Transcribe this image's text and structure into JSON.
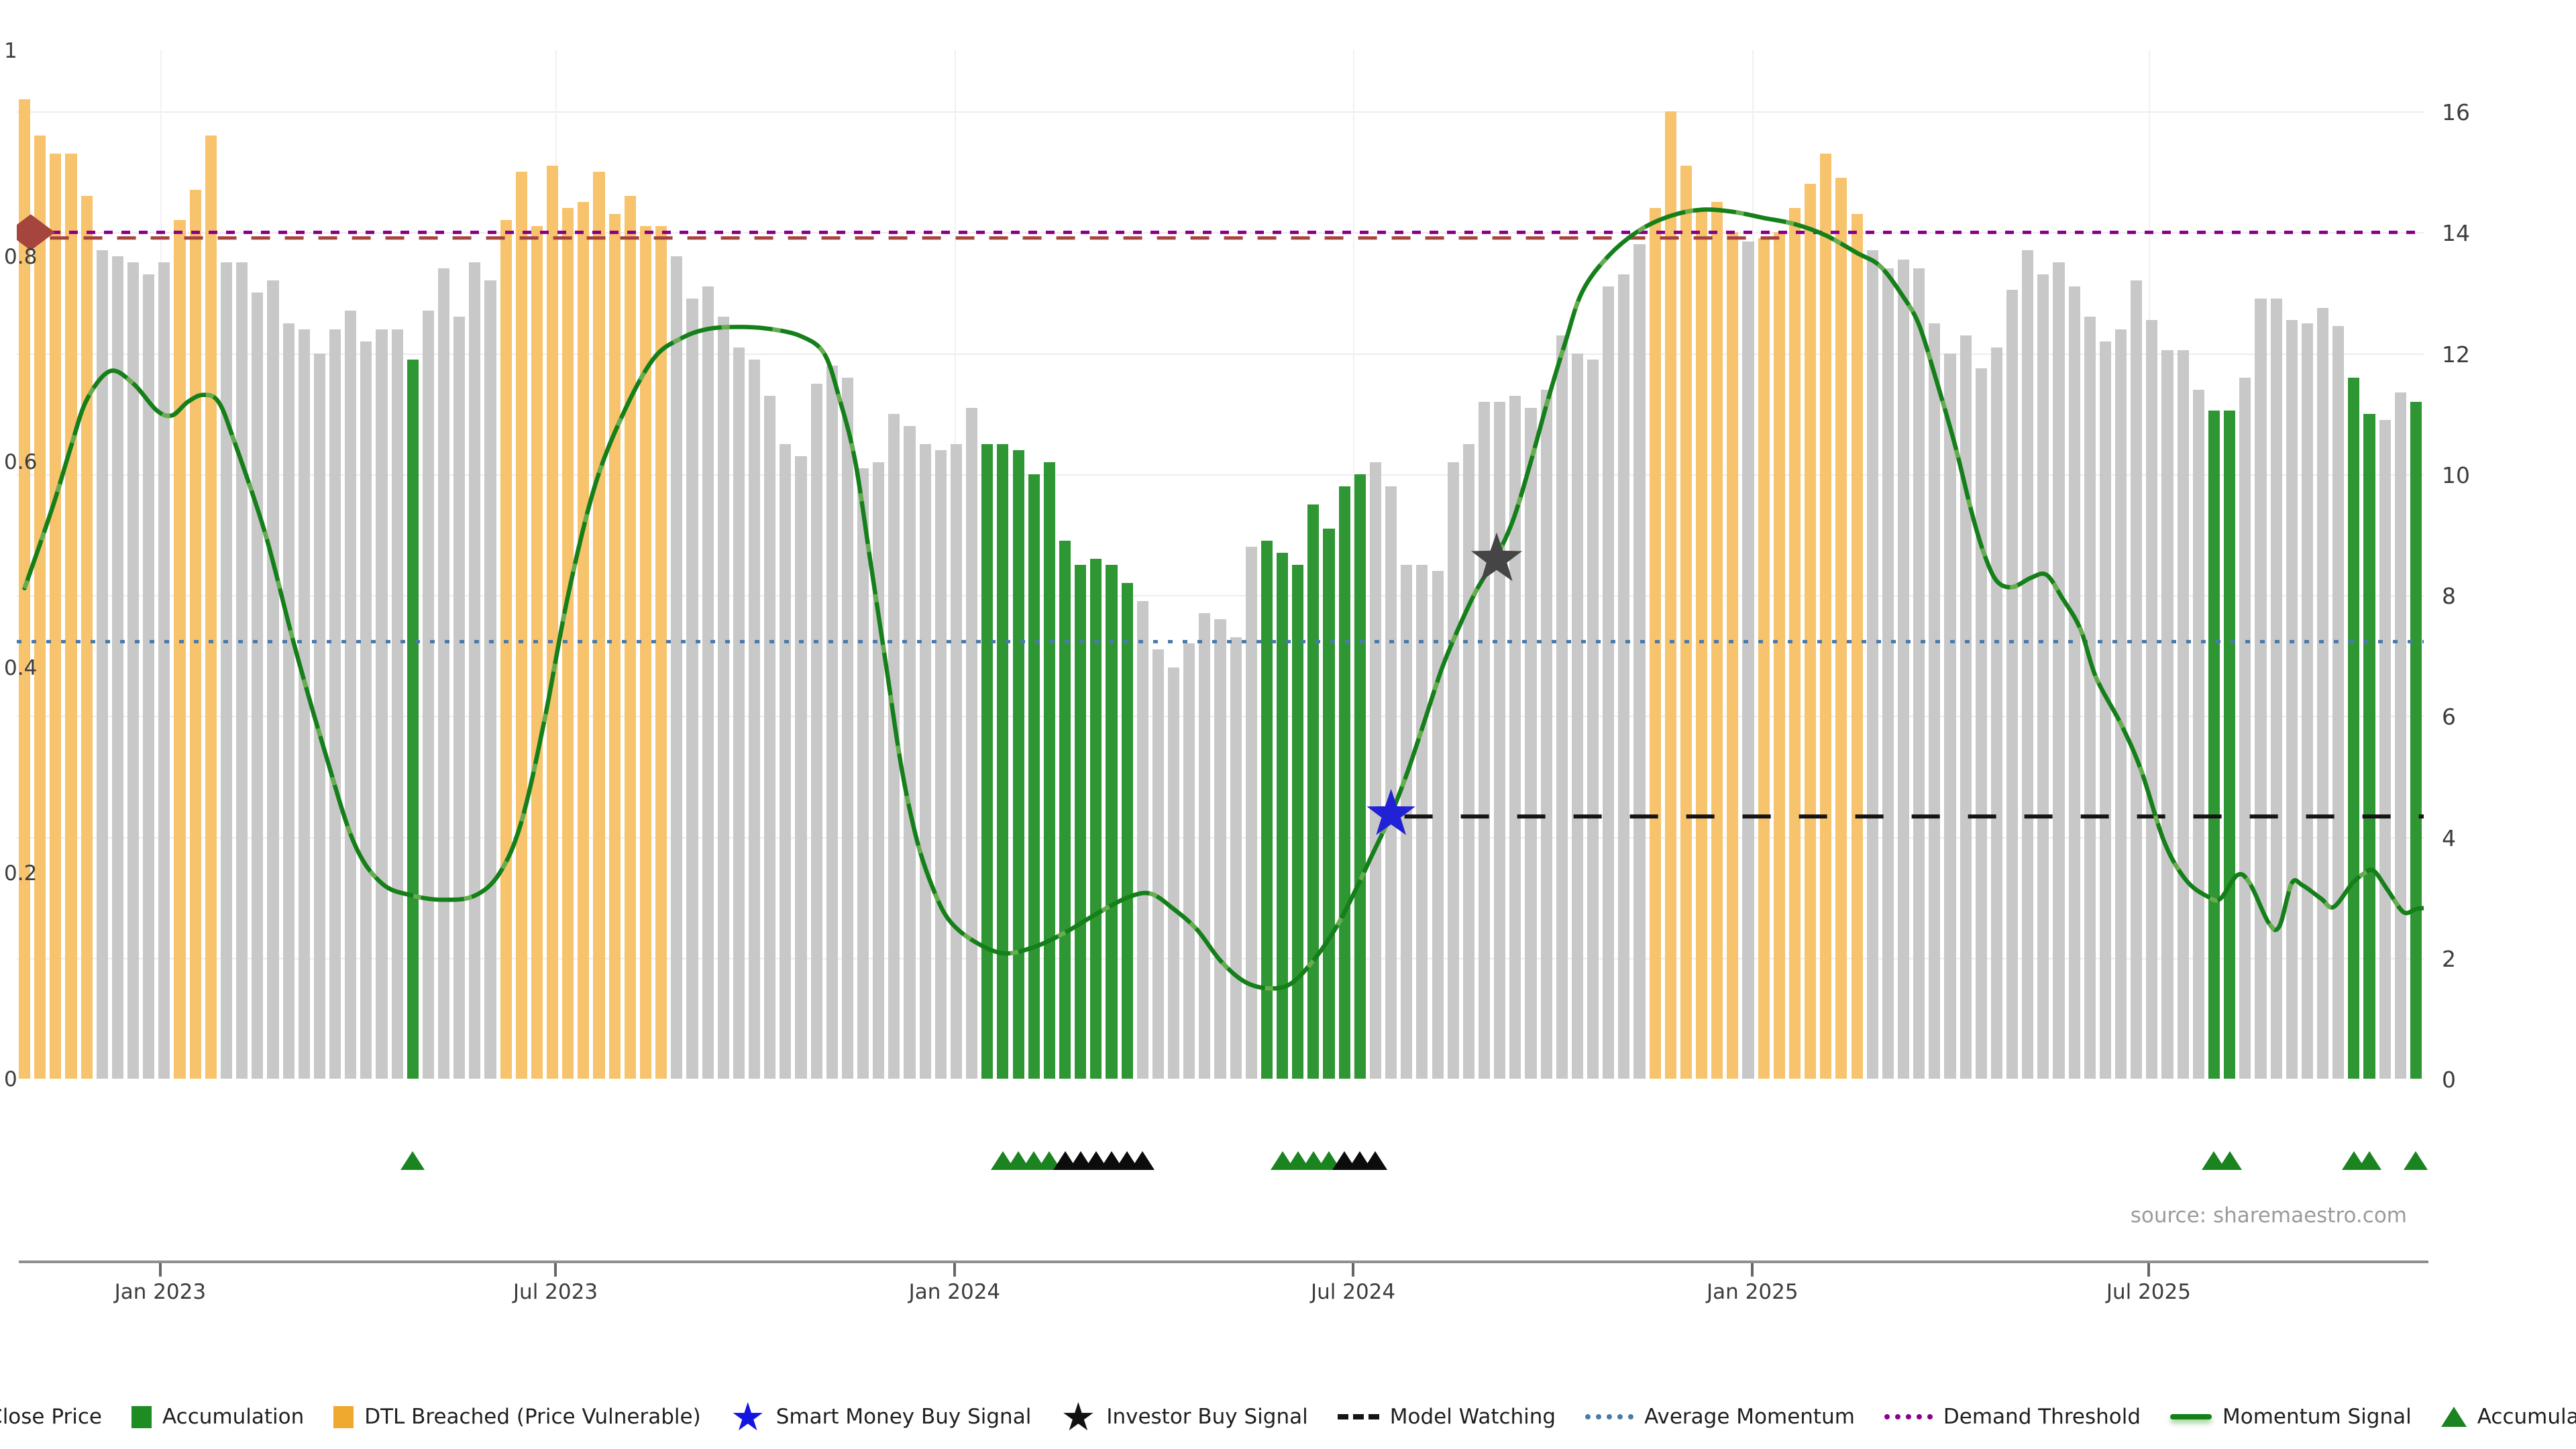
{
  "source": "source: sharemaestro.com",
  "colors": {
    "close_price_bar": "#c8c8c8",
    "accumulation_bar": "#2f9634",
    "dtl_breached_bar": "#f7c36c",
    "momentum_line": "#157f1a",
    "momentum_line_fleck": "#70b356",
    "demand_threshold": "#8b008b",
    "dtl_level_line": "#a6453e",
    "average_momentum": "#4a7aab",
    "model_watching": "#141414",
    "smart_money_star": "#2121d6",
    "investor_star": "#454545",
    "triangle_green": "#1b8420",
    "triangle_black": "#0c0c0c",
    "axis_text": "#3c3c3c",
    "source_text": "#9b9b9b"
  },
  "chart_data": {
    "type": "bar",
    "title": "",
    "xlabel": "",
    "ylabel_left": "",
    "ylabel_right": "",
    "grid": true,
    "legend_position": "bottom",
    "x_ticks": {
      "labels": [
        "Jan 2023",
        "Jul 2023",
        "Jan 2024",
        "Jul 2024",
        "Jan 2025",
        "Jul 2025"
      ],
      "fractions": [
        0.0596,
        0.2238,
        0.3896,
        0.5552,
        0.7211,
        0.8857
      ]
    },
    "left_axis": {
      "ticks": [
        "0",
        "0.2",
        "0.4",
        "0.6",
        "0.8",
        "1"
      ],
      "values": [
        0,
        0.2,
        0.4,
        0.6,
        0.8,
        1
      ],
      "range": [
        0,
        1
      ]
    },
    "right_axis": {
      "ticks": [
        "0",
        "2",
        "4",
        "6",
        "8",
        "10",
        "12",
        "14",
        "16"
      ],
      "values": [
        0,
        2,
        4,
        6,
        8,
        10,
        12,
        14,
        16
      ],
      "range": [
        0,
        16
      ],
      "top_fraction_of_left_axis": 0.9406
    },
    "bars": {
      "kind_key": {
        "g": "close-price",
        "o": "dtl-breached",
        "a": "accumulation"
      },
      "kinds": "oooooggggggooogggggggggggaggggg? placeholder",
      "values": [
        16.2,
        15.6,
        15.3,
        15.3,
        14.6,
        13.7,
        13.6,
        13.5,
        13.3,
        13.5,
        14.2,
        14.7,
        15.6,
        13.5,
        13.5,
        13.0,
        13.2,
        12.5,
        12.4,
        12.0,
        12.4,
        12.7,
        12.2,
        12.4,
        12.4,
        11.9,
        12.7,
        13.4,
        12.6,
        13.5,
        13.2,
        14.2,
        15.0,
        14.1,
        15.1,
        14.4,
        14.5,
        15.0,
        14.3,
        14.6,
        14.1,
        14.1,
        13.6,
        12.9,
        13.1,
        12.6,
        12.1,
        11.9,
        11.3,
        10.5,
        10.3,
        11.5,
        11.8,
        11.6,
        10.1,
        10.2,
        11.0,
        10.8,
        10.5,
        10.4,
        10.5,
        11.1,
        10.5,
        10.5,
        10.4,
        10.0,
        10.2,
        8.9,
        8.5,
        8.6,
        8.5,
        8.2,
        7.9,
        7.1,
        6.8,
        7.2,
        7.7,
        7.6,
        7.3,
        8.8,
        8.9,
        8.7,
        8.5,
        9.5,
        9.1,
        9.8,
        10.0,
        10.2,
        9.8,
        8.5,
        8.5,
        8.4,
        10.2,
        10.5,
        11.2,
        11.2,
        11.3,
        11.1,
        11.4,
        12.3,
        12.0,
        11.9,
        13.1,
        13.3,
        13.8,
        14.4,
        16.0,
        15.1,
        14.4,
        14.5,
        14.0,
        13.85,
        13.9,
        14.0,
        14.4,
        14.8,
        15.3,
        14.9,
        14.3,
        13.7,
        13.4,
        13.55,
        13.4,
        12.5,
        12.0,
        12.3,
        11.75,
        12.1,
        13.05,
        13.7,
        13.3,
        13.5,
        13.1,
        12.6,
        12.2,
        12.4,
        13.2,
        12.55,
        12.05,
        12.05,
        11.4,
        11.05,
        11.05,
        11.6,
        12.9,
        12.9,
        12.55,
        12.5,
        12.75,
        12.45,
        11.6,
        11.0,
        10.9,
        11.35,
        11.2
      ],
      "segments": [
        {
          "from": 0,
          "to": 4,
          "kind": "o"
        },
        {
          "from": 5,
          "to": 9,
          "kind": "g"
        },
        {
          "from": 10,
          "to": 12,
          "kind": "o"
        },
        {
          "from": 13,
          "to": 24,
          "kind": "g"
        },
        {
          "from": 25,
          "to": 25,
          "kind": "a"
        },
        {
          "from": 26,
          "to": 30,
          "kind": "g"
        },
        {
          "from": 31,
          "to": 41,
          "kind": "o"
        },
        {
          "from": 42,
          "to": 61,
          "kind": "g"
        },
        {
          "from": 62,
          "to": 71,
          "kind": "a"
        },
        {
          "from": 72,
          "to": 79,
          "kind": "g"
        },
        {
          "from": 80,
          "to": 86,
          "kind": "a"
        },
        {
          "from": 87,
          "to": 104,
          "kind": "g"
        },
        {
          "from": 105,
          "to": 110,
          "kind": "o"
        },
        {
          "from": 111,
          "to": 111,
          "kind": "g"
        },
        {
          "from": 112,
          "to": 118,
          "kind": "o"
        },
        {
          "from": 119,
          "to": 140,
          "kind": "g"
        },
        {
          "from": 141,
          "to": 142,
          "kind": "a"
        },
        {
          "from": 143,
          "to": 149,
          "kind": "g"
        },
        {
          "from": 150,
          "to": 151,
          "kind": "a"
        },
        {
          "from": 152,
          "to": 153,
          "kind": "g"
        },
        {
          "from": 154,
          "to": 154,
          "kind": "a"
        }
      ]
    },
    "momentum_signal": [
      [
        0,
        0.477
      ],
      [
        1,
        0.52
      ],
      [
        2,
        0.565
      ],
      [
        3,
        0.615
      ],
      [
        4,
        0.66
      ],
      [
        5.5,
        0.688
      ],
      [
        7,
        0.676
      ],
      [
        8.5,
        0.65
      ],
      [
        9.5,
        0.645
      ],
      [
        10.5,
        0.658
      ],
      [
        11.5,
        0.665
      ],
      [
        12.5,
        0.658
      ],
      [
        13.5,
        0.62
      ],
      [
        15.5,
        0.53
      ],
      [
        17.4,
        0.42
      ],
      [
        19.3,
        0.32
      ],
      [
        21.2,
        0.23
      ],
      [
        23,
        0.19
      ],
      [
        25,
        0.178
      ],
      [
        27,
        0.174
      ],
      [
        29,
        0.178
      ],
      [
        30.6,
        0.2
      ],
      [
        32,
        0.25
      ],
      [
        33.5,
        0.35
      ],
      [
        35,
        0.47
      ],
      [
        36.7,
        0.575
      ],
      [
        38.5,
        0.645
      ],
      [
        40.5,
        0.7
      ],
      [
        42.3,
        0.72
      ],
      [
        44,
        0.729
      ],
      [
        46,
        0.731
      ],
      [
        48,
        0.729
      ],
      [
        50,
        0.722
      ],
      [
        51.5,
        0.705
      ],
      [
        52.5,
        0.66
      ],
      [
        53.5,
        0.6
      ],
      [
        54.5,
        0.5
      ],
      [
        55.5,
        0.4
      ],
      [
        56.5,
        0.3
      ],
      [
        57.5,
        0.23
      ],
      [
        58.5,
        0.185
      ],
      [
        59.5,
        0.155
      ],
      [
        61,
        0.135
      ],
      [
        63,
        0.122
      ],
      [
        65,
        0.128
      ],
      [
        67,
        0.142
      ],
      [
        69,
        0.16
      ],
      [
        71,
        0.176
      ],
      [
        72.5,
        0.18
      ],
      [
        74,
        0.165
      ],
      [
        75.5,
        0.145
      ],
      [
        77,
        0.115
      ],
      [
        78.5,
        0.095
      ],
      [
        80,
        0.088
      ],
      [
        81.5,
        0.092
      ],
      [
        83,
        0.115
      ],
      [
        84.5,
        0.148
      ],
      [
        85.6,
        0.18
      ],
      [
        86.7,
        0.215
      ],
      [
        88,
        0.257
      ],
      [
        89.1,
        0.3
      ],
      [
        90.2,
        0.35
      ],
      [
        91.3,
        0.4
      ],
      [
        92.4,
        0.44
      ],
      [
        93.5,
        0.475
      ],
      [
        94.8,
        0.508
      ],
      [
        95.9,
        0.545
      ],
      [
        97,
        0.6
      ],
      [
        98.1,
        0.66
      ],
      [
        99.2,
        0.715
      ],
      [
        100.3,
        0.765
      ],
      [
        102,
        0.8
      ],
      [
        104,
        0.825
      ],
      [
        106,
        0.839
      ],
      [
        108,
        0.845
      ],
      [
        110,
        0.843
      ],
      [
        112,
        0.837
      ],
      [
        114,
        0.831
      ],
      [
        116,
        0.82
      ],
      [
        118,
        0.803
      ],
      [
        119.5,
        0.79
      ],
      [
        121,
        0.76
      ],
      [
        122,
        0.733
      ],
      [
        123,
        0.685
      ],
      [
        124.3,
        0.617
      ],
      [
        125.4,
        0.55
      ],
      [
        126.2,
        0.51
      ],
      [
        127,
        0.484
      ],
      [
        128,
        0.478
      ],
      [
        129.2,
        0.487
      ],
      [
        130.2,
        0.49
      ],
      [
        131.2,
        0.468
      ],
      [
        132.4,
        0.437
      ],
      [
        133.4,
        0.39
      ],
      [
        135,
        0.345
      ],
      [
        136.3,
        0.3
      ],
      [
        137.8,
        0.23
      ],
      [
        139.2,
        0.193
      ],
      [
        140.6,
        0.177
      ],
      [
        141.4,
        0.175
      ],
      [
        142.5,
        0.198
      ],
      [
        143.3,
        0.19
      ],
      [
        144.5,
        0.152
      ],
      [
        145.2,
        0.148
      ],
      [
        146,
        0.19
      ],
      [
        146.7,
        0.188
      ],
      [
        147.9,
        0.175
      ],
      [
        148.7,
        0.167
      ],
      [
        149.9,
        0.19
      ],
      [
        150.7,
        0.2
      ],
      [
        151.3,
        0.202
      ],
      [
        152.2,
        0.183
      ],
      [
        153.2,
        0.162
      ],
      [
        154,
        0.165
      ],
      [
        154.6,
        0.166
      ]
    ],
    "average_momentum_level": 0.425,
    "demand_threshold_level": 0.823,
    "dtl_level_line": {
      "level": 0.8175,
      "from_i": 0,
      "to_i": 113
    },
    "dtl_marker": {
      "i": 0.4,
      "level": 0.823
    },
    "model_watching": {
      "level": 0.255,
      "from_i": 88,
      "to_i": 154.8
    },
    "smart_money_buy_signal": {
      "i": 88,
      "level": 0.257
    },
    "investor_buy_signal": {
      "i": 94.8,
      "level": 0.505
    },
    "accumulation_triangles": [
      {
        "i": 25,
        "c": "g"
      },
      {
        "i": 63,
        "c": "g"
      },
      {
        "i": 64,
        "c": "g"
      },
      {
        "i": 65,
        "c": "g"
      },
      {
        "i": 66,
        "c": "g"
      },
      {
        "i": 67,
        "c": "k"
      },
      {
        "i": 68,
        "c": "k"
      },
      {
        "i": 69,
        "c": "k"
      },
      {
        "i": 70,
        "c": "k"
      },
      {
        "i": 71,
        "c": "k"
      },
      {
        "i": 72,
        "c": "k"
      },
      {
        "i": 81,
        "c": "g"
      },
      {
        "i": 82,
        "c": "g"
      },
      {
        "i": 83,
        "c": "g"
      },
      {
        "i": 84,
        "c": "g"
      },
      {
        "i": 85,
        "c": "k"
      },
      {
        "i": 86,
        "c": "k"
      },
      {
        "i": 87,
        "c": "k"
      },
      {
        "i": 141,
        "c": "g"
      },
      {
        "i": 142,
        "c": "g"
      },
      {
        "i": 150,
        "c": "g"
      },
      {
        "i": 151,
        "c": "g"
      },
      {
        "i": 154,
        "c": "g"
      }
    ]
  },
  "legend": {
    "items": [
      {
        "type": "square",
        "color": "#c8c8c8",
        "label": "Close Price"
      },
      {
        "type": "square",
        "color": "#1d8c23",
        "label": "Accumulation"
      },
      {
        "type": "square",
        "color": "#efa92e",
        "label": "DTL Breached (Price Vulnerable)"
      },
      {
        "type": "star",
        "color": "#1414e0",
        "label": "Smart Money Buy Signal"
      },
      {
        "type": "star",
        "color": "#111111",
        "label": "Investor Buy Signal"
      },
      {
        "type": "dash",
        "color": "#141414",
        "label": "Model Watching"
      },
      {
        "type": "dots",
        "color": "#4a7aab",
        "label": "Average Momentum"
      },
      {
        "type": "dots",
        "color": "#8b008b",
        "label": "Demand Threshold"
      },
      {
        "type": "line",
        "color": "#157f1a",
        "label": "Momentum Signal"
      },
      {
        "type": "triangle",
        "color": "#1b8420",
        "label": "Accumulation"
      }
    ]
  }
}
